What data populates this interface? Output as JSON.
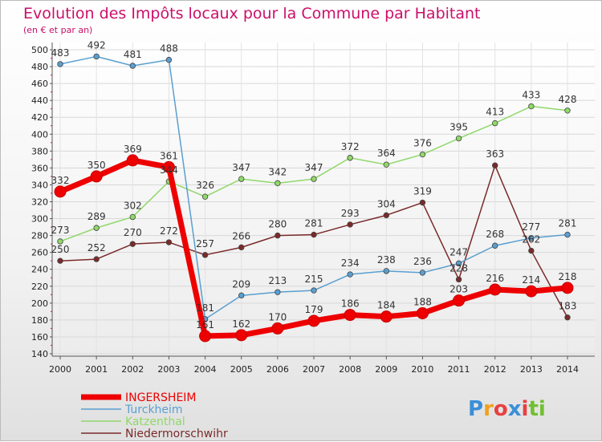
{
  "chart_data": {
    "type": "line",
    "title": "Evolution des Impôts locaux pour la Commune par Habitant",
    "subtitle": "(en € et par an)",
    "x": [
      "2000",
      "2001",
      "2002",
      "2003",
      "2004",
      "2005",
      "2006",
      "2007",
      "2008",
      "2009",
      "2010",
      "2011",
      "2012",
      "2013",
      "2014"
    ],
    "ylim": [
      140,
      500
    ],
    "yticks": [
      140,
      160,
      180,
      200,
      220,
      240,
      260,
      280,
      300,
      320,
      340,
      360,
      380,
      400,
      420,
      440,
      460,
      480,
      500
    ],
    "series": [
      {
        "name": "INGERSHEIM",
        "color": "#ee0000",
        "values": [
          332,
          350,
          369,
          361,
          161,
          162,
          170,
          179,
          186,
          184,
          188,
          203,
          216,
          214,
          218
        ]
      },
      {
        "name": "Turckheim",
        "color": "#5a9fd0",
        "values": [
          483,
          492,
          481,
          488,
          181,
          209,
          213,
          215,
          234,
          238,
          236,
          247,
          268,
          277,
          281
        ]
      },
      {
        "name": "Katzenthal",
        "color": "#90d86a",
        "values": [
          273,
          289,
          302,
          344,
          326,
          347,
          342,
          347,
          372,
          364,
          376,
          395,
          413,
          433,
          428
        ]
      },
      {
        "name": "Niedermorschwihr",
        "color": "#7a2a2a",
        "values": [
          250,
          252,
          270,
          272,
          257,
          266,
          280,
          281,
          293,
          304,
          319,
          228,
          363,
          262,
          183
        ]
      }
    ]
  },
  "logo": {
    "text": "Proxiti"
  }
}
